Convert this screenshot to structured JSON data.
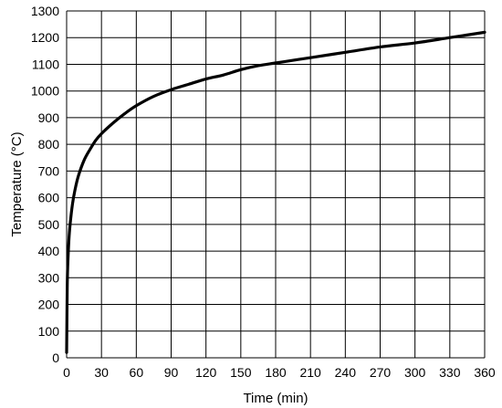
{
  "chart_data": {
    "type": "line",
    "title": "",
    "xlabel": "Time (min)",
    "ylabel": "Temperature (°C)",
    "xlim": [
      0,
      360
    ],
    "ylim": [
      0,
      1300
    ],
    "xticks": [
      0,
      30,
      60,
      90,
      120,
      150,
      180,
      210,
      240,
      270,
      300,
      330,
      360
    ],
    "yticks": [
      0,
      100,
      200,
      300,
      400,
      500,
      600,
      700,
      800,
      900,
      1000,
      1100,
      1200,
      1300
    ],
    "grid": true,
    "legend": "none",
    "series": [
      {
        "color": "#000000",
        "x": [
          0,
          0.5,
          1,
          2,
          3,
          5,
          7,
          10,
          15,
          20,
          25,
          30,
          40,
          50,
          60,
          75,
          90,
          105,
          120,
          135,
          150,
          165,
          180,
          195,
          210,
          240,
          270,
          300,
          330,
          360
        ],
        "y": [
          20,
          260,
          350,
          445,
          500,
          575,
          625,
          680,
          740,
          780,
          815,
          840,
          880,
          915,
          945,
          980,
          1005,
          1025,
          1045,
          1060,
          1080,
          1095,
          1105,
          1115,
          1125,
          1145,
          1165,
          1180,
          1200,
          1220
        ]
      }
    ]
  }
}
